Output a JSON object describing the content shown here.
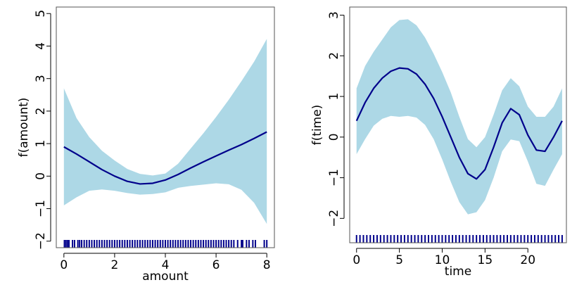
{
  "chart_data": [
    {
      "type": "line",
      "xlabel": "amount",
      "ylabel": "f(amount)",
      "xlim": [
        -0.3,
        8.3
      ],
      "ylim": [
        -2.2,
        5.2
      ],
      "xticks": [
        0,
        2,
        4,
        6,
        8
      ],
      "yticks": [
        -2,
        -1,
        0,
        1,
        2,
        3,
        4,
        5
      ],
      "xtick_labels": [
        "0",
        "2",
        "4",
        "6",
        "8"
      ],
      "ytick_labels": [
        "−2",
        "−1",
        "0",
        "1",
        "2",
        "3",
        "4",
        "5"
      ],
      "grid": false,
      "colors": {
        "line": "#00008b",
        "band": "#add8e6",
        "rug": "#00008b"
      },
      "x": [
        0,
        0.5,
        1,
        1.5,
        2,
        2.5,
        3,
        3.5,
        4,
        4.5,
        5,
        5.5,
        6,
        6.5,
        7,
        7.5,
        8
      ],
      "fit": [
        0.9,
        0.68,
        0.44,
        0.2,
        0.0,
        -0.16,
        -0.24,
        -0.22,
        -0.12,
        0.05,
        0.25,
        0.44,
        0.62,
        0.8,
        0.97,
        1.16,
        1.36
      ],
      "upper": [
        2.7,
        1.78,
        1.2,
        0.78,
        0.48,
        0.22,
        0.07,
        0.02,
        0.08,
        0.38,
        0.85,
        1.32,
        1.82,
        2.35,
        2.92,
        3.52,
        4.22
      ],
      "lower": [
        -0.9,
        -0.65,
        -0.45,
        -0.41,
        -0.45,
        -0.52,
        -0.57,
        -0.55,
        -0.5,
        -0.36,
        -0.3,
        -0.26,
        -0.22,
        -0.25,
        -0.42,
        -0.82,
        -1.47
      ],
      "rug_y": -2.2,
      "rug": [
        0.02,
        0.08,
        0.14,
        0.2,
        0.34,
        0.42,
        0.55,
        0.62,
        0.7,
        0.8,
        0.9,
        1.0,
        1.1,
        1.2,
        1.3,
        1.4,
        1.5,
        1.6,
        1.7,
        1.8,
        1.9,
        2.0,
        2.1,
        2.2,
        2.3,
        2.4,
        2.5,
        2.6,
        2.7,
        2.8,
        2.9,
        3.0,
        3.1,
        3.2,
        3.3,
        3.4,
        3.5,
        3.6,
        3.7,
        3.8,
        3.9,
        4.0,
        4.1,
        4.2,
        4.3,
        4.4,
        4.5,
        4.6,
        4.7,
        4.8,
        4.9,
        5.0,
        5.1,
        5.2,
        5.3,
        5.4,
        5.5,
        5.6,
        5.7,
        5.8,
        5.9,
        6.0,
        6.1,
        6.2,
        6.3,
        6.4,
        6.5,
        6.6,
        6.7,
        6.85,
        7.0,
        7.05,
        7.2,
        7.3,
        7.45,
        7.55,
        7.9,
        8.0
      ]
    },
    {
      "type": "line",
      "xlabel": "time",
      "ylabel": "f(time)",
      "xlim": [
        -0.8,
        24.5
      ],
      "ylim": [
        -2.6,
        3.2
      ],
      "xticks": [
        0,
        5,
        10,
        15,
        20
      ],
      "yticks": [
        -2,
        -1,
        0,
        1,
        2,
        3
      ],
      "xtick_labels": [
        "0",
        "5",
        "10",
        "15",
        "20"
      ],
      "ytick_labels": [
        "−2",
        "−1",
        "0",
        "1",
        "2",
        "3"
      ],
      "grid": false,
      "colors": {
        "line": "#00008b",
        "band": "#add8e6",
        "rug": "#00008b"
      },
      "x": [
        0,
        1,
        2,
        3,
        4,
        5,
        6,
        7,
        8,
        9,
        10,
        11,
        12,
        13,
        14,
        15,
        16,
        17,
        18,
        19,
        20,
        21,
        22,
        23,
        24
      ],
      "fit": [
        0.4,
        0.85,
        1.2,
        1.45,
        1.62,
        1.7,
        1.68,
        1.55,
        1.3,
        0.95,
        0.5,
        0.0,
        -0.5,
        -0.9,
        -1.03,
        -0.8,
        -0.25,
        0.35,
        0.7,
        0.55,
        0.05,
        -0.32,
        -0.35,
        0.0,
        0.4
      ],
      "upper": [
        1.2,
        1.75,
        2.1,
        2.4,
        2.7,
        2.88,
        2.9,
        2.75,
        2.45,
        2.05,
        1.6,
        1.1,
        0.5,
        -0.05,
        -0.25,
        0.0,
        0.55,
        1.15,
        1.45,
        1.25,
        0.75,
        0.5,
        0.5,
        0.75,
        1.2
      ],
      "lower": [
        -0.42,
        -0.05,
        0.28,
        0.45,
        0.52,
        0.5,
        0.52,
        0.48,
        0.3,
        -0.05,
        -0.55,
        -1.1,
        -1.6,
        -1.9,
        -1.85,
        -1.55,
        -1.0,
        -0.35,
        -0.06,
        -0.1,
        -0.6,
        -1.15,
        -1.2,
        -0.8,
        -0.42
      ],
      "rug_y": -2.6,
      "rug": [
        0.0,
        0.4,
        0.8,
        1.2,
        1.6,
        2.0,
        2.4,
        2.8,
        3.2,
        3.6,
        4.0,
        4.4,
        4.8,
        5.2,
        5.6,
        6.0,
        6.4,
        6.8,
        7.2,
        7.6,
        8.0,
        8.4,
        8.8,
        9.2,
        9.6,
        10.0,
        10.4,
        10.8,
        11.2,
        11.6,
        12.0,
        12.4,
        12.8,
        13.2,
        13.6,
        14.0,
        14.4,
        14.8,
        15.2,
        15.6,
        16.0,
        16.4,
        16.8,
        17.2,
        17.6,
        18.0,
        18.4,
        18.8,
        19.2,
        19.6,
        20.0,
        20.4,
        20.8,
        21.2,
        21.6,
        22.0,
        22.4,
        22.8,
        23.2,
        23.6,
        24.0
      ]
    }
  ]
}
